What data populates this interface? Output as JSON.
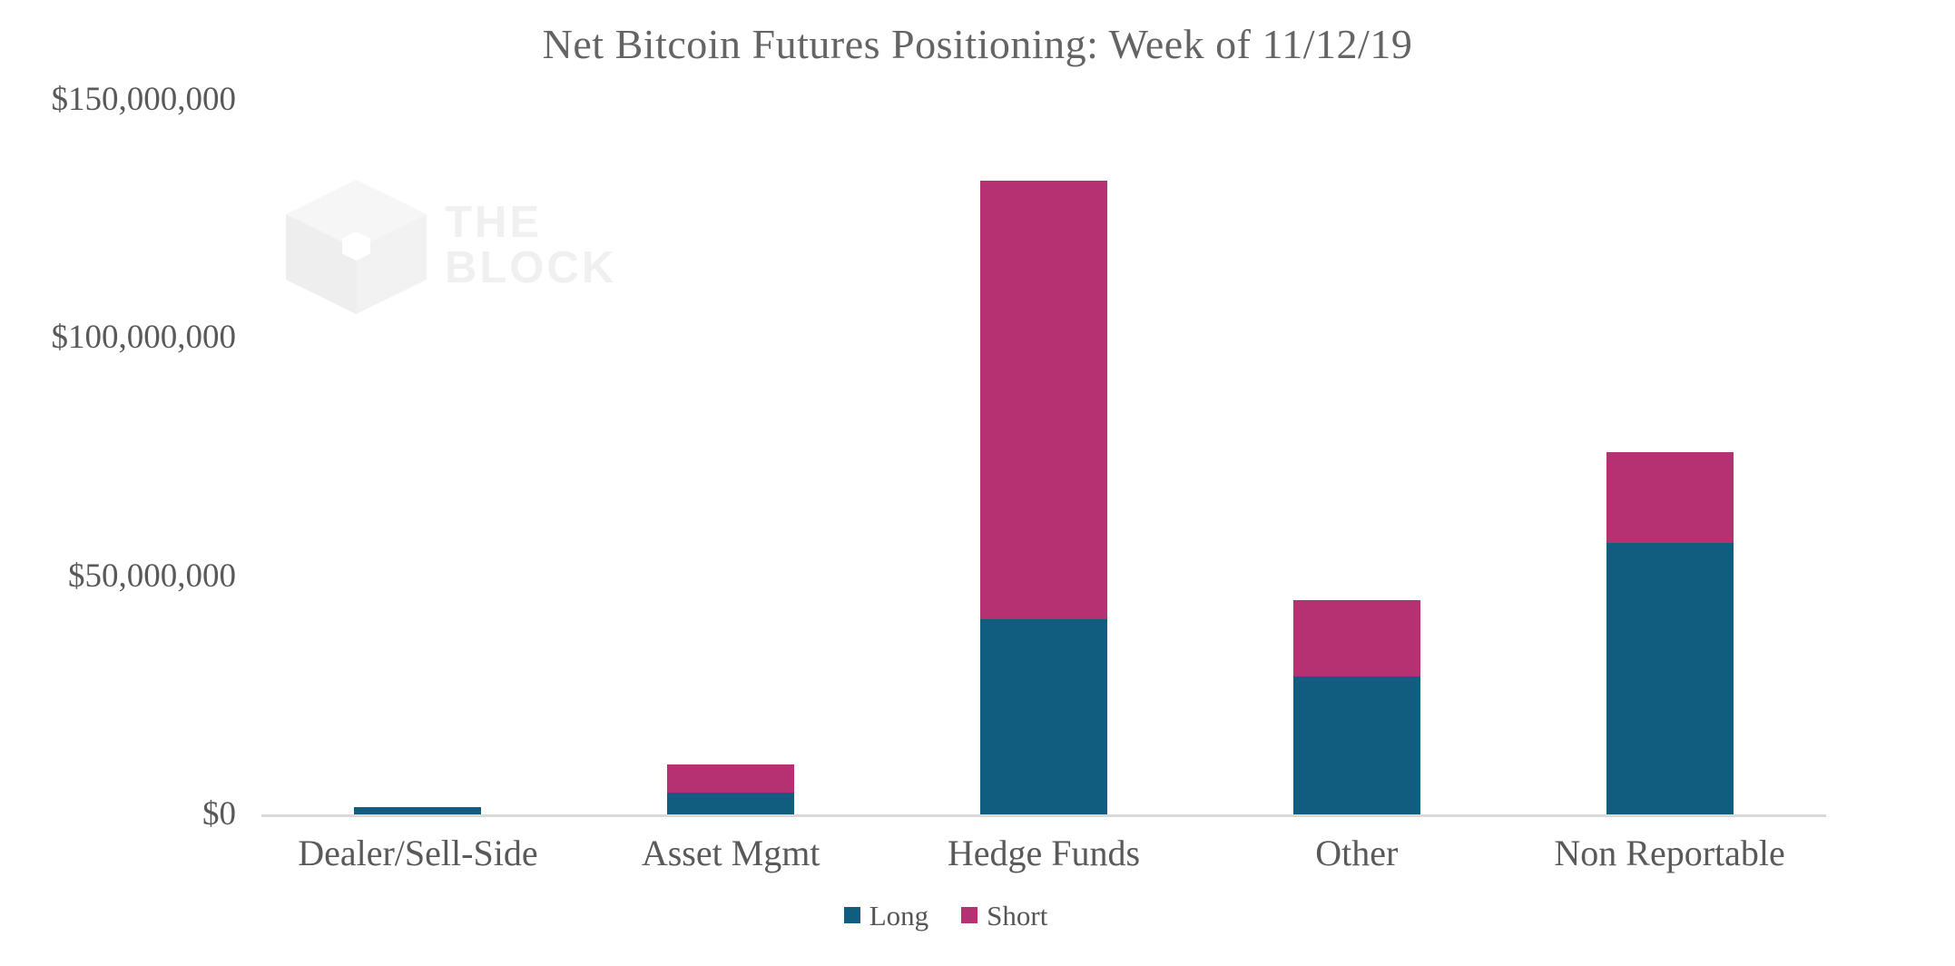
{
  "chart_data": {
    "type": "bar",
    "stacked": true,
    "title": "Net Bitcoin Futures Positioning: Week of 11/12/19",
    "xlabel": "",
    "ylabel": "",
    "categories": [
      "Dealer/Sell-Side",
      "Asset Mgmt",
      "Hedge Funds",
      "Other",
      "Non Reportable"
    ],
    "series": [
      {
        "name": "Long",
        "color": "#115d80",
        "values": [
          1500000,
          4500000,
          41000000,
          29000000,
          57000000
        ]
      },
      {
        "name": "Short",
        "color": "#b63172",
        "values": [
          0,
          6000000,
          92000000,
          16000000,
          19000000
        ]
      }
    ],
    "ylim": [
      0,
      150000000
    ],
    "ytick_interval": 50000000,
    "ytick_labels": [
      "$0",
      "$50,000,000",
      "$100,000,000",
      "$150,000,000"
    ],
    "grid": false,
    "legend_position": "bottom-center"
  },
  "watermark": {
    "line1": "THE",
    "line2": "BLOCK"
  },
  "colors": {
    "long": "#115d80",
    "short": "#b63172",
    "axis_line": "#d9d9d9",
    "label_text": "#595959",
    "title_text": "#646464",
    "watermark": "#f0f0f0"
  }
}
